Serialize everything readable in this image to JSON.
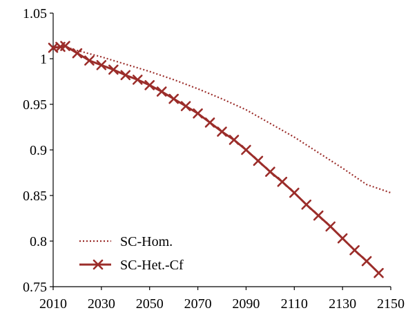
{
  "chart_data": {
    "type": "line",
    "title": "",
    "xlabel": "",
    "ylabel": "",
    "xlim": [
      2010,
      2150
    ],
    "ylim": [
      0.75,
      1.05
    ],
    "grid": false,
    "legend_position": "bottom-left",
    "x_ticks": [
      2010,
      2030,
      2050,
      2070,
      2090,
      2110,
      2130,
      2150
    ],
    "x_tick_labels": [
      "2010",
      "2030",
      "2050",
      "2070",
      "2090",
      "2110",
      "2130",
      "2150"
    ],
    "y_ticks": [
      0.75,
      0.8,
      0.85,
      0.9,
      0.95,
      1.0,
      1.05
    ],
    "y_tick_labels": [
      "0.75",
      "0.8",
      "0.85",
      "0.9",
      "0.95",
      "1",
      "1.05"
    ],
    "series": [
      {
        "name": "SC-Hom.",
        "style": "dotted",
        "color": "#9b2d2a",
        "x": [
          2010,
          2015,
          2020,
          2030,
          2040,
          2050,
          2060,
          2070,
          2080,
          2090,
          2100,
          2110,
          2120,
          2130,
          2140,
          2150
        ],
        "y": [
          1.012,
          1.013,
          1.009,
          1.002,
          0.994,
          0.986,
          0.977,
          0.967,
          0.956,
          0.944,
          0.929,
          0.914,
          0.897,
          0.88,
          0.862,
          0.853
        ]
      },
      {
        "name": "SC-Het.-Cf",
        "style": "solid-x-markers",
        "color": "#9b2d2a",
        "x": [
          2010,
          2013,
          2015,
          2020,
          2025,
          2030,
          2035,
          2040,
          2045,
          2050,
          2055,
          2060,
          2065,
          2070,
          2075,
          2080,
          2085,
          2090,
          2095,
          2100,
          2105,
          2110,
          2115,
          2120,
          2125,
          2130,
          2135,
          2140,
          2145
        ],
        "y": [
          1.012,
          1.013,
          1.014,
          1.006,
          0.998,
          0.993,
          0.988,
          0.982,
          0.977,
          0.971,
          0.964,
          0.956,
          0.948,
          0.94,
          0.93,
          0.92,
          0.911,
          0.9,
          0.888,
          0.876,
          0.865,
          0.853,
          0.84,
          0.828,
          0.816,
          0.803,
          0.79,
          0.778,
          0.765
        ]
      }
    ]
  }
}
